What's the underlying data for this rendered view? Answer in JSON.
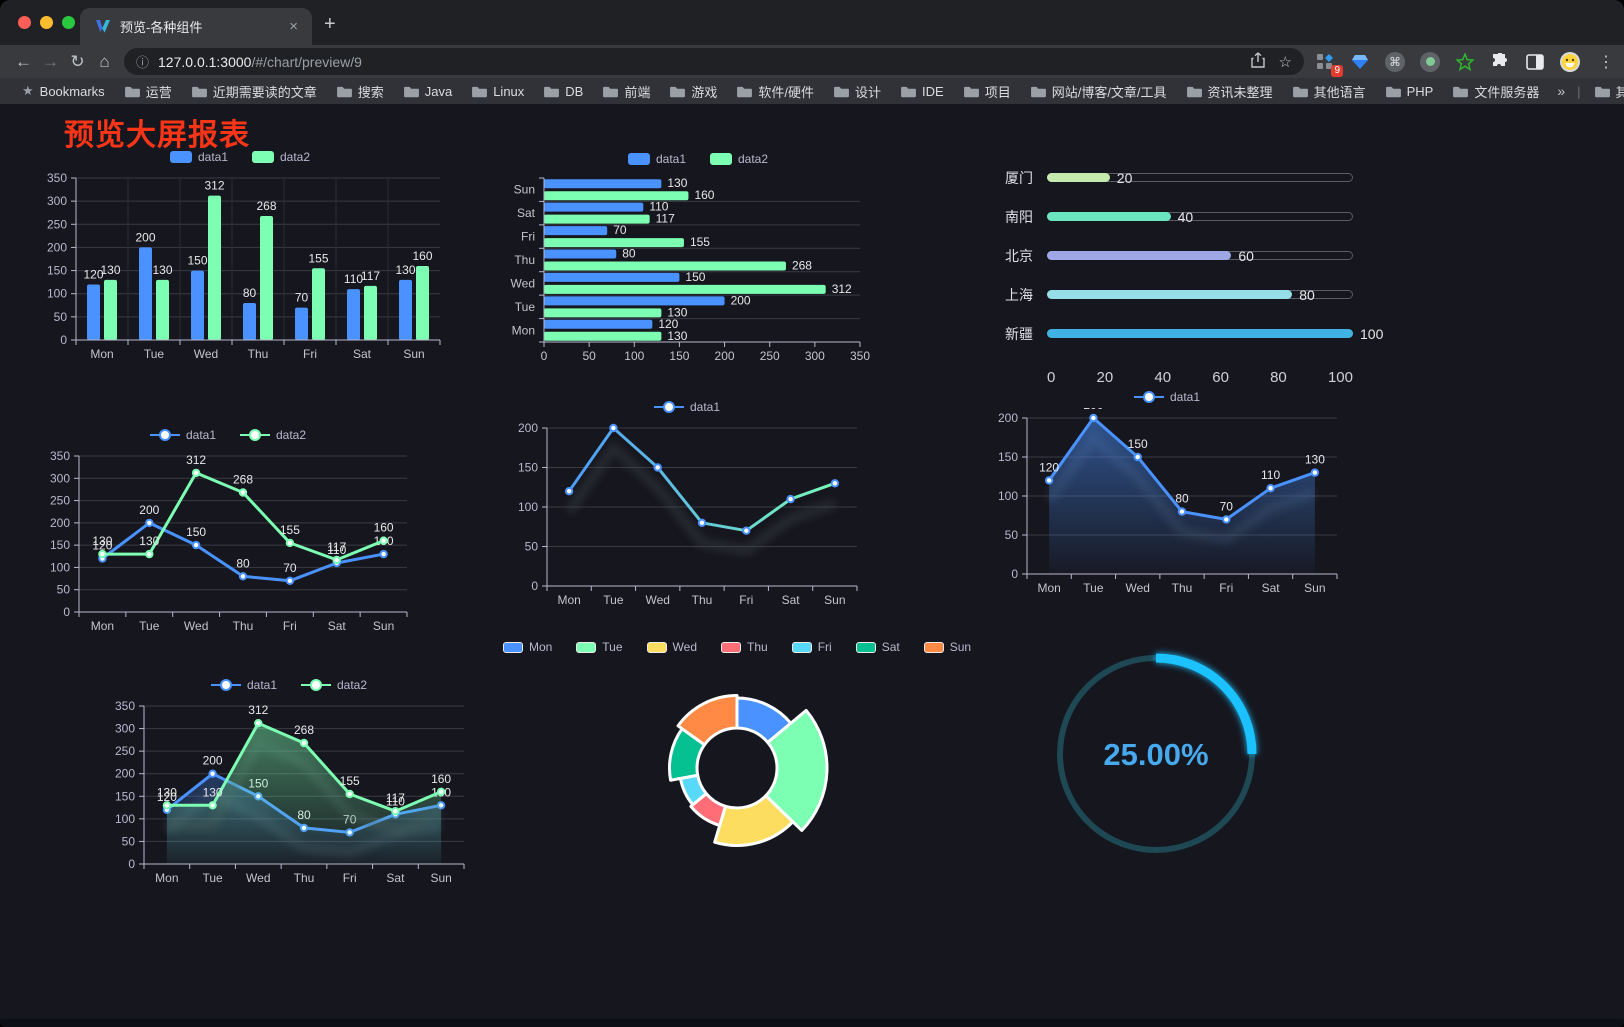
{
  "browser": {
    "traffic_lights": [
      "#ff5f57",
      "#febc2e",
      "#28c840"
    ],
    "tab": {
      "title": "预览-各种组件",
      "close_glyph": "×",
      "new_tab_glyph": "+"
    },
    "url": {
      "host": "127.0.0.1:3000",
      "path": "/#/chart/preview/9",
      "info_glyph": "ⓘ"
    },
    "nav_glyphs": {
      "back": "←",
      "forward": "→",
      "reload": "↻",
      "home": "⌂",
      "star": "☆",
      "menu": "⋮",
      "command": "⌘"
    },
    "extension_badge": "9",
    "bookmarks": [
      "Bookmarks",
      "运营",
      "近期需要读的文章",
      "搜索",
      "Java",
      "Linux",
      "DB",
      "前端",
      "游戏",
      "软件/硬件",
      "设计",
      "IDE",
      "项目",
      "网站/博客/文章/工具",
      "资讯未整理",
      "其他语言",
      "PHP",
      "文件服务器"
    ],
    "bookmarks_overflow": "»",
    "other_bookmarks": "其他书签"
  },
  "page": {
    "title": "预览大屏报表",
    "title_color": "#f93517"
  },
  "theme": {
    "background": "#16161e",
    "axis_color": "#b9b8ce",
    "grid_color": "#3a3a46",
    "category_grid_color": "#2c2c38",
    "label_color": "#e8e8ea",
    "category_label_color": "#c4c4ce"
  },
  "chart_data": [
    {
      "id": "bar-vertical",
      "type": "bar",
      "legend_position": "top",
      "categories": [
        "Mon",
        "Tue",
        "Wed",
        "Thu",
        "Fri",
        "Sat",
        "Sun"
      ],
      "series": [
        {
          "name": "data1",
          "color": "#4992ff",
          "values": [
            120,
            200,
            150,
            80,
            70,
            110,
            130
          ]
        },
        {
          "name": "data2",
          "color": "#7cffb2",
          "values": [
            130,
            130,
            312,
            268,
            155,
            117,
            160
          ]
        }
      ],
      "ylim": [
        0,
        350
      ],
      "yticks": [
        0,
        50,
        100,
        150,
        200,
        250,
        300,
        350
      ],
      "grid": true,
      "labels": true
    },
    {
      "id": "bar-horizontal",
      "type": "bar",
      "orientation": "horizontal",
      "legend_position": "top",
      "categories": [
        "Mon",
        "Tue",
        "Wed",
        "Thu",
        "Fri",
        "Sat",
        "Sun"
      ],
      "series": [
        {
          "name": "data1",
          "color": "#4992ff",
          "values": [
            120,
            200,
            150,
            80,
            70,
            110,
            130
          ]
        },
        {
          "name": "data2",
          "color": "#7cffb2",
          "values": [
            130,
            130,
            312,
            268,
            155,
            117,
            160
          ]
        }
      ],
      "xlim": [
        0,
        350
      ],
      "xticks": [
        0,
        50,
        100,
        150,
        200,
        250,
        300,
        350
      ],
      "grid": true,
      "labels": true
    },
    {
      "id": "city-progress",
      "type": "bar",
      "orientation": "horizontal",
      "variant": "progress",
      "items": [
        {
          "label": "厦门",
          "value": 20,
          "color": "#c4ebad"
        },
        {
          "label": "南阳",
          "value": 40,
          "color": "#6be6c1"
        },
        {
          "label": "北京",
          "value": 60,
          "color": "#a0a7e6"
        },
        {
          "label": "上海",
          "value": 80,
          "color": "#96dee8"
        },
        {
          "label": "新疆",
          "value": 100,
          "color": "#3fb1e3"
        }
      ],
      "xlim": [
        0,
        100
      ],
      "xticks": [
        0,
        20,
        40,
        60,
        80,
        100
      ]
    },
    {
      "id": "line-two",
      "type": "line",
      "legend_position": "top",
      "categories": [
        "Mon",
        "Tue",
        "Wed",
        "Thu",
        "Fri",
        "Sat",
        "Sun"
      ],
      "series": [
        {
          "name": "data1",
          "color": "#4992ff",
          "values": [
            120,
            200,
            150,
            80,
            70,
            110,
            130
          ]
        },
        {
          "name": "data2",
          "color": "#7cffb2",
          "values": [
            130,
            130,
            312,
            268,
            155,
            117,
            160
          ]
        }
      ],
      "ylim": [
        0,
        350
      ],
      "yticks": [
        0,
        50,
        100,
        150,
        200,
        250,
        300,
        350
      ],
      "grid": true,
      "labels": true
    },
    {
      "id": "line-gradient",
      "type": "line",
      "legend_position": "top",
      "categories": [
        "Mon",
        "Tue",
        "Wed",
        "Thu",
        "Fri",
        "Sat",
        "Sun"
      ],
      "series": [
        {
          "name": "data1",
          "color": "#4992ff",
          "gradient": [
            "#4992ff",
            "#7cffb2"
          ],
          "values": [
            120,
            200,
            150,
            80,
            70,
            110,
            130
          ]
        }
      ],
      "ylim": [
        0,
        200
      ],
      "yticks": [
        0,
        50,
        100,
        150,
        200
      ],
      "grid": true,
      "labels": false,
      "shadow": true
    },
    {
      "id": "area-single",
      "type": "area",
      "legend_position": "top",
      "categories": [
        "Mon",
        "Tue",
        "Wed",
        "Thu",
        "Fri",
        "Sat",
        "Sun"
      ],
      "series": [
        {
          "name": "data1",
          "color": "#4992ff",
          "area": true,
          "values": [
            120,
            200,
            150,
            80,
            70,
            110,
            130
          ]
        }
      ],
      "ylim": [
        0,
        200
      ],
      "yticks": [
        0,
        50,
        100,
        150,
        200
      ],
      "grid": true,
      "labels": true,
      "shadow": true
    },
    {
      "id": "area-two",
      "type": "area",
      "legend_position": "top",
      "categories": [
        "Mon",
        "Tue",
        "Wed",
        "Thu",
        "Fri",
        "Sat",
        "Sun"
      ],
      "series": [
        {
          "name": "data1",
          "color": "#4992ff",
          "area": true,
          "values": [
            120,
            200,
            150,
            80,
            70,
            110,
            130
          ]
        },
        {
          "name": "data2",
          "color": "#7cffb2",
          "area": true,
          "values": [
            130,
            130,
            312,
            268,
            155,
            117,
            160
          ]
        }
      ],
      "ylim": [
        0,
        350
      ],
      "yticks": [
        0,
        50,
        100,
        150,
        200,
        250,
        300,
        350
      ],
      "grid": true,
      "labels": true,
      "shadow": true
    },
    {
      "id": "rose-pie",
      "type": "pie",
      "rose": true,
      "legend_position": "top",
      "items": [
        {
          "name": "Mon",
          "value": 120,
          "color": "#4992ff"
        },
        {
          "name": "Tue",
          "value": 200,
          "color": "#7cffb2"
        },
        {
          "name": "Wed",
          "value": 150,
          "color": "#fddd60"
        },
        {
          "name": "Thu",
          "value": 80,
          "color": "#ff6e76"
        },
        {
          "name": "Fri",
          "value": 70,
          "color": "#58d9f9"
        },
        {
          "name": "Sat",
          "value": 110,
          "color": "#05c091"
        },
        {
          "name": "Sun",
          "value": 130,
          "color": "#ff8a45"
        }
      ]
    },
    {
      "id": "gauge-percent",
      "type": "gauge",
      "value": 25,
      "max": 100,
      "label": "25.00%",
      "progress_color": "#1ac1ff",
      "track_color": "#1d4854",
      "text_color": "#47a9ee"
    }
  ]
}
